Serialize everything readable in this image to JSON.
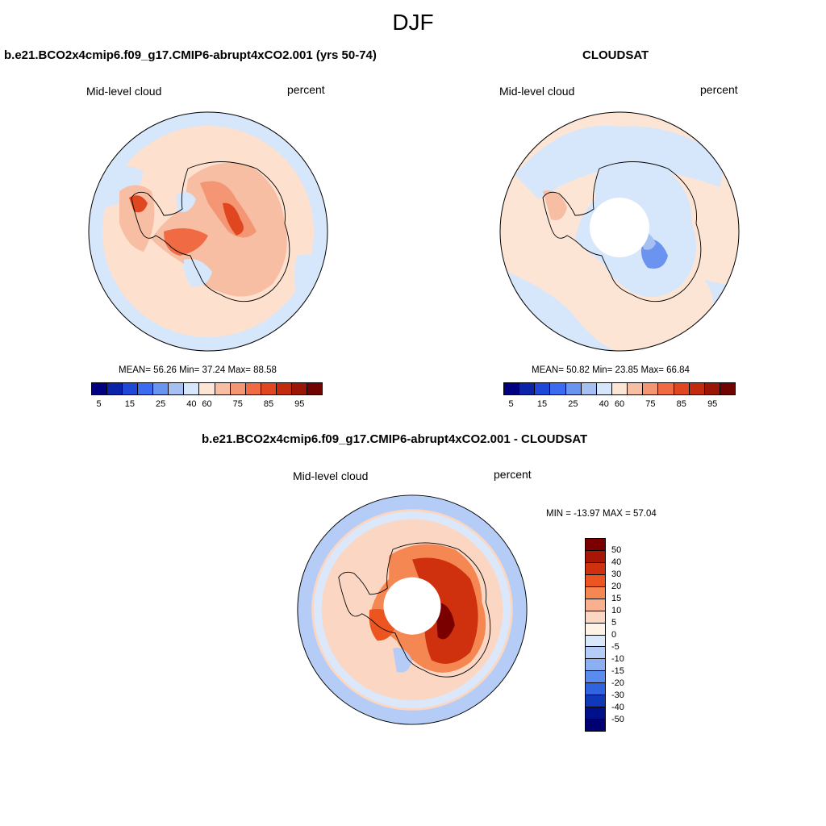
{
  "figure": {
    "title": "DJF"
  },
  "panels": [
    {
      "title": "b.e21.BCO2x4cmip6.f09_g17.CMIP6-abrupt4xCO2.001 (yrs 50-74)",
      "left_label": "Mid-level cloud",
      "right_label": "percent",
      "stats": "MEAN=  56.26  Min=  37.24  Max=  88.58",
      "colorbar_ticks": [
        "5",
        "15",
        "25",
        "40",
        "60",
        "75",
        "85",
        "95"
      ]
    },
    {
      "title": "CLOUDSAT",
      "left_label": "Mid-level cloud",
      "right_label": "percent",
      "stats": "MEAN=  50.82  Min=  23.85  Max=  66.84",
      "colorbar_ticks": [
        "5",
        "15",
        "25",
        "40",
        "60",
        "75",
        "85",
        "95"
      ]
    },
    {
      "title": "b.e21.BCO2x4cmip6.f09_g17.CMIP6-abrupt4xCO2.001 - CLOUDSAT",
      "left_label": "Mid-level cloud",
      "right_label": "percent",
      "stats": "MIN = -13.97 MAX =  57.04",
      "colorbar_ticks": [
        "50",
        "40",
        "30",
        "20",
        "15",
        "10",
        "5",
        "0",
        "-5",
        "-10",
        "-15",
        "-20",
        "-30",
        "-40",
        "-50"
      ]
    }
  ],
  "colors": {
    "seq": [
      "#000080",
      "#0a23a8",
      "#1f47d8",
      "#3b6cf0",
      "#6b93f0",
      "#a6c0f2",
      "#d6e6fb",
      "#fde5d6",
      "#f7bea4",
      "#f49673",
      "#f06b43",
      "#e0461f",
      "#c22b0e",
      "#9c1607",
      "#700400"
    ],
    "diff": [
      "#7a0000",
      "#a81606",
      "#cf300d",
      "#ec5520",
      "#f58752",
      "#f9b08e",
      "#fbd6c3",
      "#fff2e6",
      "#dbe8fb",
      "#b5cdf6",
      "#8bb0f1",
      "#5a8cee",
      "#2f63e0",
      "#0f39b8",
      "#00108a",
      "#000070"
    ],
    "ocean_model": "#fde0ce",
    "ocean_obs": "#fde5d6",
    "ring_blue": "#d6e6fb"
  },
  "chart_data": [
    {
      "type": "heatmap",
      "title": "b.e21.BCO2x4cmip6.f09_g17.CMIP6-abrupt4xCO2.001 (yrs 50-74)",
      "variable": "Mid-level cloud",
      "units": "percent",
      "projection": "south polar stereographic",
      "levels": [
        5,
        10,
        15,
        20,
        25,
        30,
        40,
        50,
        60,
        65,
        75,
        80,
        85,
        90,
        95
      ],
      "mean": 56.26,
      "min": 37.24,
      "max": 88.58
    },
    {
      "type": "heatmap",
      "title": "CLOUDSAT",
      "variable": "Mid-level cloud",
      "units": "percent",
      "projection": "south polar stereographic",
      "levels": [
        5,
        10,
        15,
        20,
        25,
        30,
        40,
        50,
        60,
        65,
        75,
        80,
        85,
        90,
        95
      ],
      "mean": 50.82,
      "min": 23.85,
      "max": 66.84
    },
    {
      "type": "heatmap",
      "title": "b.e21.BCO2x4cmip6.f09_g17.CMIP6-abrupt4xCO2.001 - CLOUDSAT",
      "variable": "Mid-level cloud",
      "units": "percent",
      "projection": "south polar stereographic",
      "levels": [
        -50,
        -40,
        -30,
        -20,
        -15,
        -10,
        -5,
        0,
        5,
        10,
        15,
        20,
        30,
        40,
        50
      ],
      "min": -13.97,
      "max": 57.04
    }
  ]
}
